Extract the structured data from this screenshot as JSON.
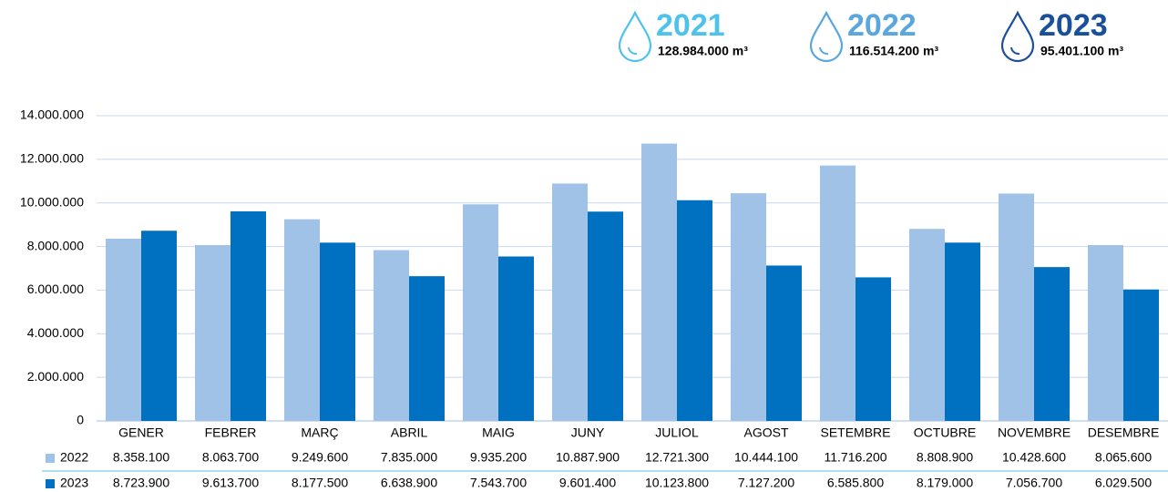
{
  "header": {
    "totals": [
      {
        "year": "2021",
        "amount": "128.984.000 m³",
        "color": "#4dc3ec"
      },
      {
        "year": "2022",
        "amount": "116.514.200 m³",
        "color": "#5aa6de"
      },
      {
        "year": "2023",
        "amount": "95.401.100 m³",
        "color": "#1a4f9c"
      }
    ]
  },
  "chart_data": {
    "type": "bar",
    "categories": [
      "GENER",
      "FEBRER",
      "MARÇ",
      "ABRIL",
      "MAIG",
      "JUNY",
      "JULIOL",
      "AGOST",
      "SETEMBRE",
      "OCTUBRE",
      "NOVEMBRE",
      "DESEMBRE"
    ],
    "series": [
      {
        "name": "2022",
        "color": "#a0c2e6",
        "values": [
          8358100,
          8063700,
          9249600,
          7835000,
          9935200,
          10887900,
          12721300,
          10444100,
          11716200,
          8808900,
          10428600,
          8065600
        ],
        "value_labels": [
          "8.358.100",
          "8.063.700",
          "9.249.600",
          "7.835.000",
          "9.935.200",
          "10.887.900",
          "12.721.300",
          "10.444.100",
          "11.716.200",
          "8.808.900",
          "10.428.600",
          "8.065.600"
        ]
      },
      {
        "name": "2023",
        "color": "#0070c0",
        "values": [
          8723900,
          9613700,
          8177500,
          6638900,
          7543700,
          9601400,
          10123800,
          7127200,
          6585800,
          8179000,
          7056700,
          6029500
        ],
        "value_labels": [
          "8.723.900",
          "9.613.700",
          "8.177.500",
          "6.638.900",
          "7.543.700",
          "9.601.400",
          "10.123.800",
          "7.127.200",
          "6.585.800",
          "8.179.000",
          "7.056.700",
          "6.029.500"
        ]
      }
    ],
    "ylim": [
      0,
      14000000
    ],
    "yticks": [
      0,
      {
        "value": 2000000,
        "label": "2.000.000"
      },
      {
        "value": 4000000,
        "label": "4.000.000"
      },
      {
        "value": 6000000,
        "label": "6.000.000"
      },
      {
        "value": 8000000,
        "label": "8.000.000"
      },
      {
        "value": 10000000,
        "label": "10.000.000"
      },
      {
        "value": 12000000,
        "label": "12.000.000"
      },
      {
        "value": 14000000,
        "label": "14.000.000"
      }
    ],
    "grid": true
  }
}
